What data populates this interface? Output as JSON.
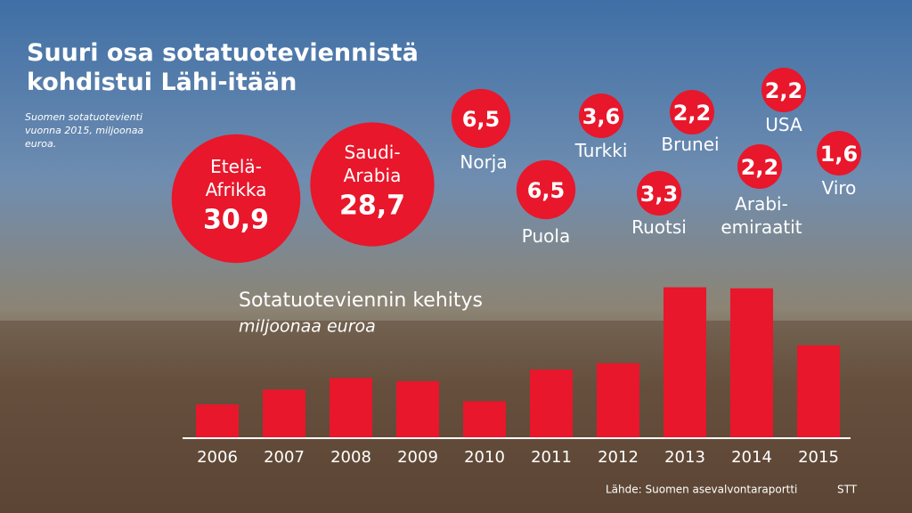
{
  "chart_data": [
    {
      "type": "bubble",
      "title": "Suuri osa sotatuoteviennistä kohdistui Lähi-itään",
      "subtitle": "Suomen sotatuotevienti vuonna 2015, miljoonaa euroa.",
      "categories": [
        "Etelä-Afrikka",
        "Saudi-Arabia",
        "Norja",
        "Puola",
        "Turkki",
        "Ruotsi",
        "Brunei",
        "Arabi-emiraatit",
        "USA",
        "Viro"
      ],
      "values": [
        30.9,
        28.7,
        6.5,
        6.5,
        3.6,
        3.3,
        2.2,
        2.2,
        2.2,
        1.6
      ],
      "value_labels": [
        "30,9",
        "28,7",
        "6,5",
        "6,5",
        "3,6",
        "3,3",
        "2,2",
        "2,2",
        "2,2",
        "1,6"
      ],
      "color": "#e8172b"
    },
    {
      "type": "bar",
      "title": "Sotatuoteviennin kehitys",
      "subtitle": "miljoonaa euroa",
      "categories": [
        "2006",
        "2007",
        "2008",
        "2009",
        "2010",
        "2011",
        "2012",
        "2013",
        "2014",
        "2015"
      ],
      "values": [
        32,
        46,
        57,
        54,
        35,
        65,
        71,
        143,
        142,
        88
      ],
      "ylim": [
        0,
        170
      ],
      "color": "#e8172b"
    }
  ],
  "source": "Lähde: Suomen asevalvontaraportti",
  "credit": "STT"
}
